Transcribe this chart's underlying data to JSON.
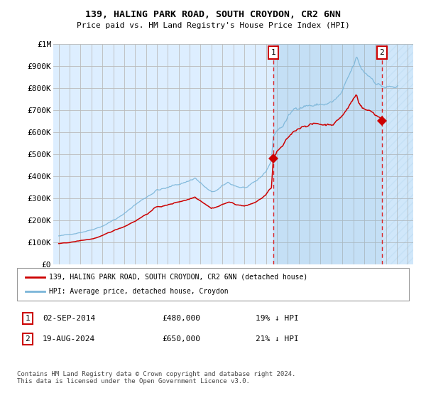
{
  "title": "139, HALING PARK ROAD, SOUTH CROYDON, CR2 6NN",
  "subtitle": "Price paid vs. HM Land Registry's House Price Index (HPI)",
  "ylim": [
    0,
    1000000
  ],
  "yticks": [
    0,
    100000,
    200000,
    300000,
    400000,
    500000,
    600000,
    700000,
    800000,
    900000,
    1000000
  ],
  "ytick_labels": [
    "£0",
    "£100K",
    "£200K",
    "£300K",
    "£400K",
    "£500K",
    "£600K",
    "£700K",
    "£800K",
    "£900K",
    "£1M"
  ],
  "hpi_color": "#7ab5d8",
  "price_color": "#cc0000",
  "sale1_date": 2014.67,
  "sale1_price": 480000,
  "sale2_date": 2024.63,
  "sale2_price": 650000,
  "legend_line1": "139, HALING PARK ROAD, SOUTH CROYDON, CR2 6NN (detached house)",
  "legend_line2": "HPI: Average price, detached house, Croydon",
  "annotation1": [
    "1",
    "02-SEP-2014",
    "£480,000",
    "19% ↓ HPI"
  ],
  "annotation2": [
    "2",
    "19-AUG-2024",
    "£650,000",
    "21% ↓ HPI"
  ],
  "footer": "Contains HM Land Registry data © Crown copyright and database right 2024.\nThis data is licensed under the Open Government Licence v3.0.",
  "chart_bg": "#ddeeff",
  "hatch_region_start": 2024.63,
  "hatch_region_end": 2027.5,
  "xlim_start": 1994.5,
  "xlim_end": 2027.5
}
